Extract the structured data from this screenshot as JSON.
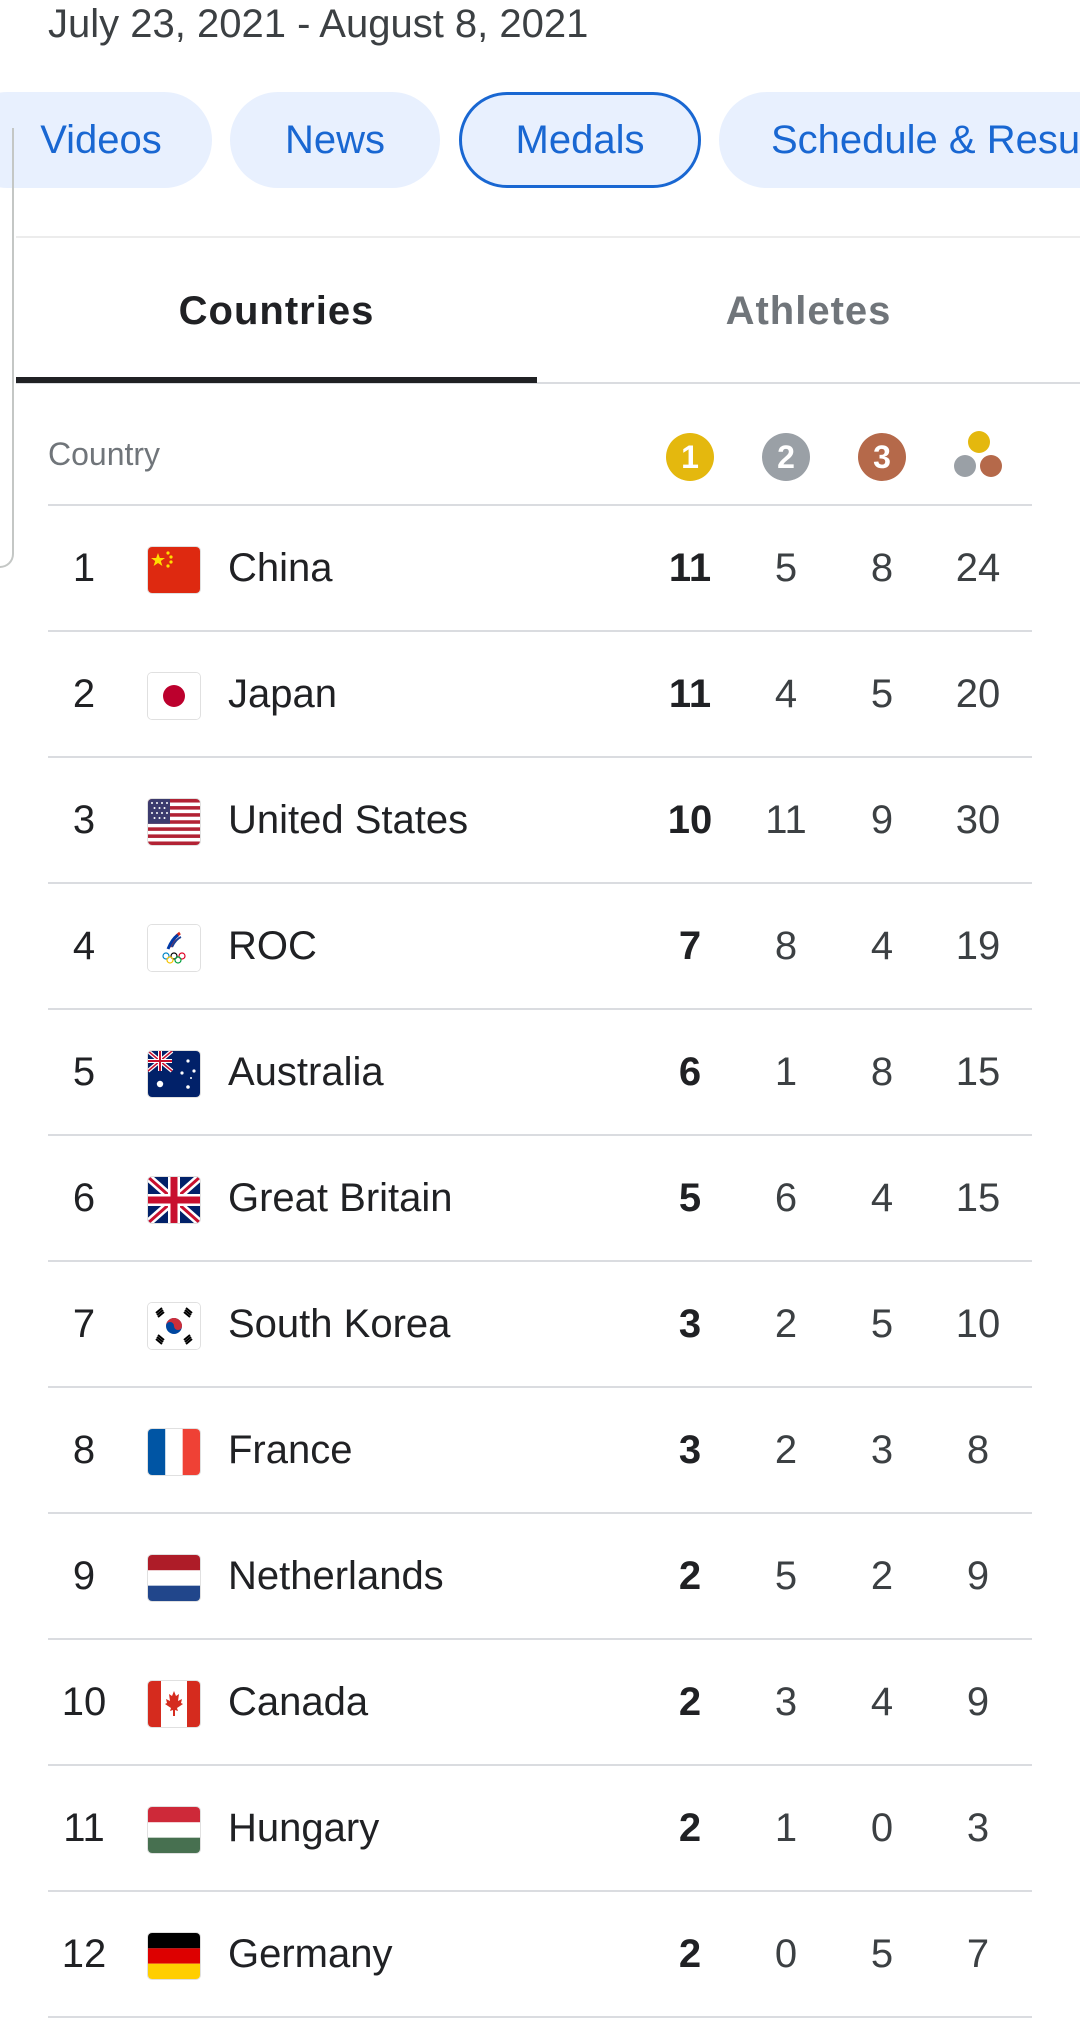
{
  "date_range": "July 23, 2021 - August 8, 2021",
  "chips": [
    {
      "label": "Videos",
      "selected": false
    },
    {
      "label": "News",
      "selected": false
    },
    {
      "label": "Medals",
      "selected": true
    },
    {
      "label": "Schedule & Resu",
      "selected": false
    }
  ],
  "tabs": {
    "countries": "Countries",
    "athletes": "Athletes"
  },
  "table": {
    "country_header": "Country",
    "medal_icons": {
      "gold": {
        "label": "1",
        "color": "#e4b80e"
      },
      "silver": {
        "label": "2",
        "color": "#9aa0a6"
      },
      "bronze": {
        "label": "3",
        "color": "#b5694a"
      },
      "total": "total-medals-icon"
    },
    "rows": [
      {
        "rank": "1",
        "country": "China",
        "flag": "china-flag",
        "gold": "11",
        "silver": "5",
        "bronze": "8",
        "total": "24"
      },
      {
        "rank": "2",
        "country": "Japan",
        "flag": "japan-flag",
        "gold": "11",
        "silver": "4",
        "bronze": "5",
        "total": "20"
      },
      {
        "rank": "3",
        "country": "United States",
        "flag": "united-states-flag",
        "gold": "10",
        "silver": "11",
        "bronze": "9",
        "total": "30"
      },
      {
        "rank": "4",
        "country": "ROC",
        "flag": "roc-flag",
        "gold": "7",
        "silver": "8",
        "bronze": "4",
        "total": "19"
      },
      {
        "rank": "5",
        "country": "Australia",
        "flag": "australia-flag",
        "gold": "6",
        "silver": "1",
        "bronze": "8",
        "total": "15"
      },
      {
        "rank": "6",
        "country": "Great Britain",
        "flag": "great-britain-flag",
        "gold": "5",
        "silver": "6",
        "bronze": "4",
        "total": "15"
      },
      {
        "rank": "7",
        "country": "South Korea",
        "flag": "south-korea-flag",
        "gold": "3",
        "silver": "2",
        "bronze": "5",
        "total": "10"
      },
      {
        "rank": "8",
        "country": "France",
        "flag": "france-flag",
        "gold": "3",
        "silver": "2",
        "bronze": "3",
        "total": "8"
      },
      {
        "rank": "9",
        "country": "Netherlands",
        "flag": "netherlands-flag",
        "gold": "2",
        "silver": "5",
        "bronze": "2",
        "total": "9"
      },
      {
        "rank": "10",
        "country": "Canada",
        "flag": "canada-flag",
        "gold": "2",
        "silver": "3",
        "bronze": "4",
        "total": "9"
      },
      {
        "rank": "11",
        "country": "Hungary",
        "flag": "hungary-flag",
        "gold": "2",
        "silver": "1",
        "bronze": "0",
        "total": "3"
      },
      {
        "rank": "12",
        "country": "Germany",
        "flag": "germany-flag",
        "gold": "2",
        "silver": "0",
        "bronze": "5",
        "total": "7"
      }
    ]
  }
}
